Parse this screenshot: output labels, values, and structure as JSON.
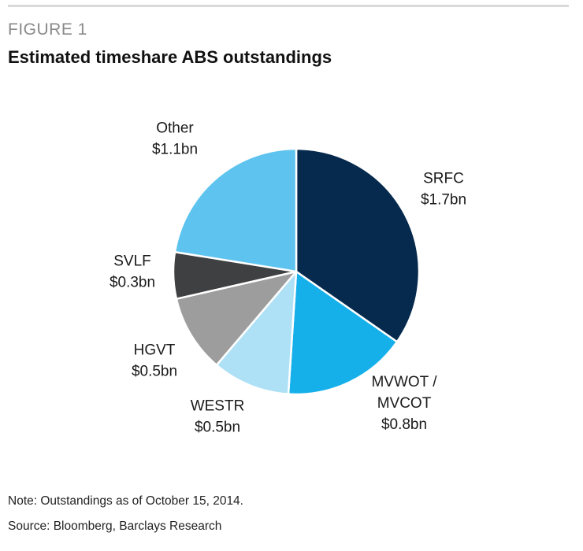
{
  "figure_label": "FIGURE 1",
  "note": "Note: Outstandings as of October 15, 2014.",
  "source": "Source: Bloomberg, Barclays Research",
  "chart_data": {
    "type": "pie",
    "title": "Estimated timeshare ABS outstandings",
    "unit": "$bn",
    "slices": [
      {
        "label_lines": [
          "SRFC",
          "$1.7bn"
        ],
        "value": 1.7,
        "color": "#062a4d"
      },
      {
        "label_lines": [
          "MVWOT /",
          "MVCOT",
          "$0.8bn"
        ],
        "value": 0.8,
        "color": "#15b0ea"
      },
      {
        "label_lines": [
          "WESTR",
          "$0.5bn"
        ],
        "value": 0.5,
        "color": "#aee1f6"
      },
      {
        "label_lines": [
          "HGVT",
          "$0.5bn"
        ],
        "value": 0.5,
        "color": "#9d9d9d"
      },
      {
        "label_lines": [
          "SVLF",
          "$0.3bn"
        ],
        "value": 0.3,
        "color": "#3f4042"
      },
      {
        "label_lines": [
          "Other",
          "$1.1bn"
        ],
        "value": 1.1,
        "color": "#5ec3ef"
      }
    ]
  }
}
